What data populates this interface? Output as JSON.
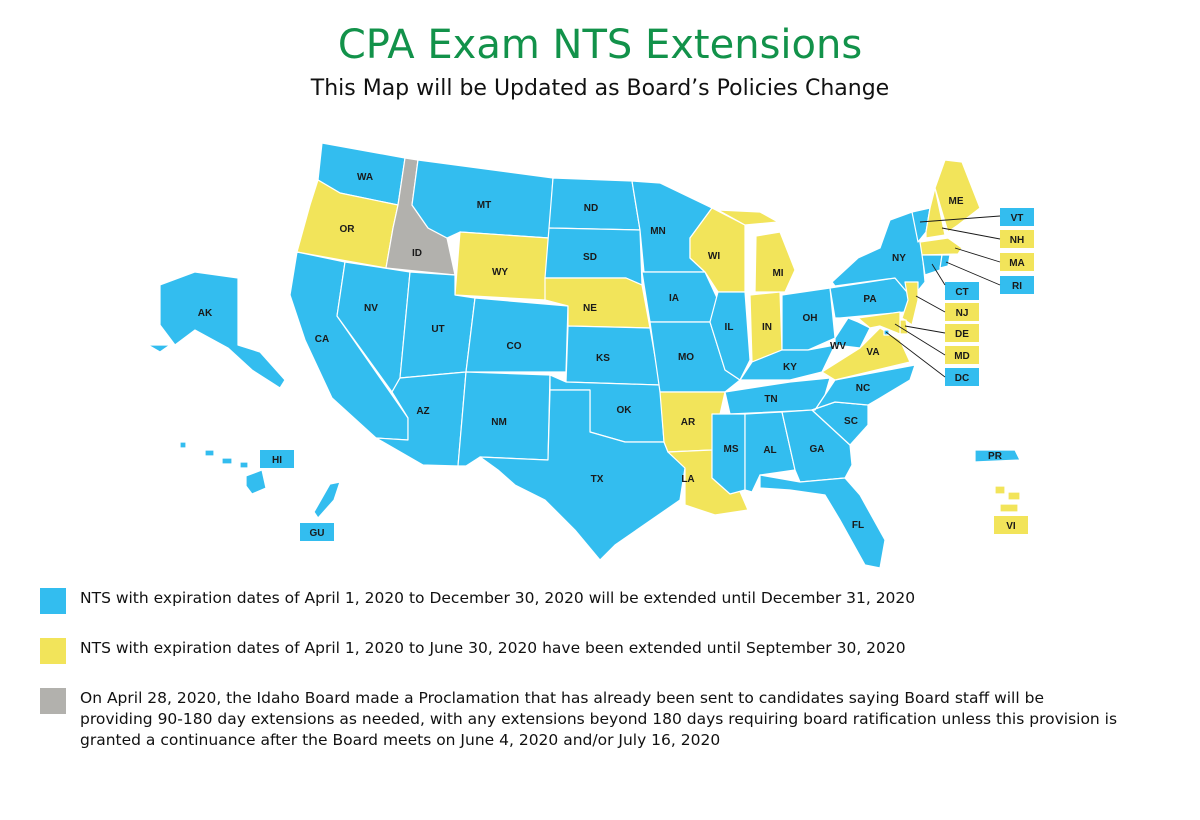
{
  "title": "CPA Exam NTS Extensions",
  "subtitle": "This Map will be Updated as Board’s Policies Change",
  "colors": {
    "extended_dec": "#33bdef",
    "extended_sep": "#f2e45a",
    "idaho": "#b2b1ad"
  },
  "states": [
    {
      "abbr": "WA",
      "status": "extended_dec"
    },
    {
      "abbr": "OR",
      "status": "extended_sep"
    },
    {
      "abbr": "CA",
      "status": "extended_dec"
    },
    {
      "abbr": "ID",
      "status": "idaho"
    },
    {
      "abbr": "NV",
      "status": "extended_dec"
    },
    {
      "abbr": "MT",
      "status": "extended_dec"
    },
    {
      "abbr": "WY",
      "status": "extended_sep"
    },
    {
      "abbr": "UT",
      "status": "extended_dec"
    },
    {
      "abbr": "CO",
      "status": "extended_dec"
    },
    {
      "abbr": "AZ",
      "status": "extended_dec"
    },
    {
      "abbr": "NM",
      "status": "extended_dec"
    },
    {
      "abbr": "ND",
      "status": "extended_dec"
    },
    {
      "abbr": "SD",
      "status": "extended_dec"
    },
    {
      "abbr": "NE",
      "status": "extended_sep"
    },
    {
      "abbr": "KS",
      "status": "extended_dec"
    },
    {
      "abbr": "OK",
      "status": "extended_dec"
    },
    {
      "abbr": "TX",
      "status": "extended_dec"
    },
    {
      "abbr": "MN",
      "status": "extended_dec"
    },
    {
      "abbr": "IA",
      "status": "extended_dec"
    },
    {
      "abbr": "MO",
      "status": "extended_dec"
    },
    {
      "abbr": "AR",
      "status": "extended_sep"
    },
    {
      "abbr": "LA",
      "status": "extended_sep"
    },
    {
      "abbr": "WI",
      "status": "extended_sep"
    },
    {
      "abbr": "IL",
      "status": "extended_dec"
    },
    {
      "abbr": "MI",
      "status": "extended_sep"
    },
    {
      "abbr": "IN",
      "status": "extended_sep"
    },
    {
      "abbr": "OH",
      "status": "extended_dec"
    },
    {
      "abbr": "KY",
      "status": "extended_dec"
    },
    {
      "abbr": "TN",
      "status": "extended_dec"
    },
    {
      "abbr": "MS",
      "status": "extended_dec"
    },
    {
      "abbr": "AL",
      "status": "extended_dec"
    },
    {
      "abbr": "GA",
      "status": "extended_dec"
    },
    {
      "abbr": "FL",
      "status": "extended_dec"
    },
    {
      "abbr": "SC",
      "status": "extended_dec"
    },
    {
      "abbr": "NC",
      "status": "extended_dec"
    },
    {
      "abbr": "VA",
      "status": "extended_sep"
    },
    {
      "abbr": "WV",
      "status": "extended_dec"
    },
    {
      "abbr": "PA",
      "status": "extended_dec"
    },
    {
      "abbr": "NY",
      "status": "extended_dec"
    },
    {
      "abbr": "ME",
      "status": "extended_sep"
    },
    {
      "abbr": "AK",
      "status": "extended_dec"
    },
    {
      "abbr": "HI",
      "status": "extended_dec"
    },
    {
      "abbr": "GU",
      "status": "extended_dec"
    },
    {
      "abbr": "PR",
      "status": "extended_dec"
    },
    {
      "abbr": "VI",
      "status": "extended_sep"
    },
    {
      "abbr": "VT",
      "status": "extended_dec"
    },
    {
      "abbr": "NH",
      "status": "extended_sep"
    },
    {
      "abbr": "MA",
      "status": "extended_sep"
    },
    {
      "abbr": "RI",
      "status": "extended_dec"
    },
    {
      "abbr": "CT",
      "status": "extended_dec"
    },
    {
      "abbr": "NJ",
      "status": "extended_sep"
    },
    {
      "abbr": "DE",
      "status": "extended_sep"
    },
    {
      "abbr": "MD",
      "status": "extended_sep"
    },
    {
      "abbr": "DC",
      "status": "extended_dec"
    }
  ],
  "legend": [
    {
      "color_key": "extended_dec",
      "text": "NTS with expiration dates of April 1, 2020 to December 30, 2020 will be extended until December 31, 2020"
    },
    {
      "color_key": "extended_sep",
      "text": "NTS with expiration dates of April 1, 2020 to June 30, 2020 have been extended until September 30, 2020"
    },
    {
      "color_key": "idaho",
      "text": "On April 28, 2020, the Idaho Board made a Proclamation that has already been sent to candidates saying Board staff will be providing 90-180 day extensions as needed, with any extensions beyond 180 days requiring board ratification unless this provision is granted a continuance after the Board meets on June 4, 2020 and/or July 16, 2020"
    }
  ]
}
